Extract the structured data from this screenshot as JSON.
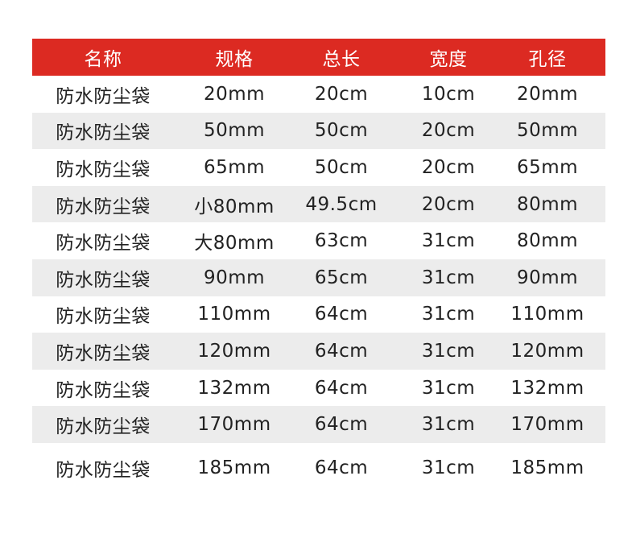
{
  "colors": {
    "header_bg": "#dc2a22",
    "stripe": "#ececec",
    "text": "#222222"
  },
  "table": {
    "headers": [
      "名称",
      "规格",
      "总长",
      "宽度",
      "孔径"
    ],
    "rows": [
      [
        "防水防尘袋",
        "20mm",
        "20cm",
        "10cm",
        "20mm"
      ],
      [
        "防水防尘袋",
        "50mm",
        "50cm",
        "20cm",
        "50mm"
      ],
      [
        "防水防尘袋",
        "65mm",
        "50cm",
        "20cm",
        "65mm"
      ],
      [
        "防水防尘袋",
        "小80mm",
        "49.5cm",
        "20cm",
        "80mm"
      ],
      [
        "防水防尘袋",
        "大80mm",
        "63cm",
        "31cm",
        "80mm"
      ],
      [
        "防水防尘袋",
        "90mm",
        "65cm",
        "31cm",
        "90mm"
      ],
      [
        "防水防尘袋",
        "110mm",
        "64cm",
        "31cm",
        "110mm"
      ],
      [
        "防水防尘袋",
        "120mm",
        "64cm",
        "31cm",
        "120mm"
      ],
      [
        "防水防尘袋",
        "132mm",
        "64cm",
        "31cm",
        "132mm"
      ],
      [
        "防水防尘袋",
        "170mm",
        "64cm",
        "31cm",
        "170mm"
      ],
      [
        "防水防尘袋",
        "185mm",
        "64cm",
        "31cm",
        "185mm"
      ]
    ]
  }
}
